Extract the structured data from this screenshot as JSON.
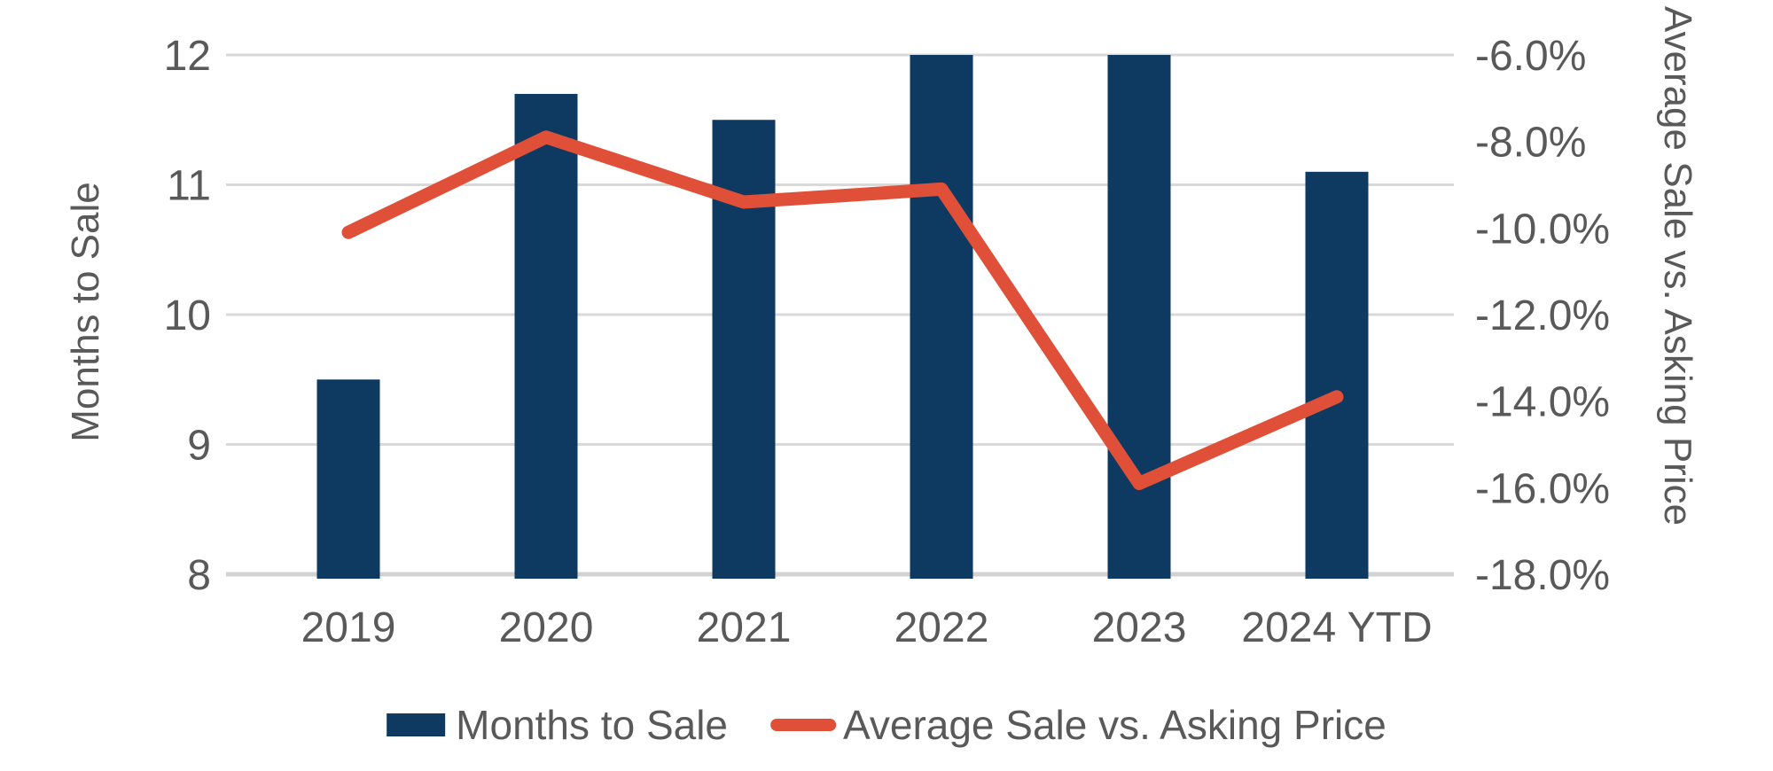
{
  "page": {
    "background": "#ffffff"
  },
  "colors": {
    "bar": "#0e3a62",
    "line": "#e05039",
    "text": "#595959",
    "gridline": "#d9d9d9",
    "axis_line": "#d2d2d2"
  },
  "chart_data": {
    "type": "combo_bar_line",
    "categories": [
      "2019",
      "2020",
      "2021",
      "2022",
      "2023",
      "2024 YTD"
    ],
    "series": [
      {
        "name": "Months to Sale",
        "type": "bar",
        "axis": "left",
        "values": [
          9.5,
          11.7,
          11.5,
          12.0,
          12.0,
          11.1
        ]
      },
      {
        "name": "Average Sale vs. Asking Price",
        "type": "line",
        "axis": "right",
        "values": [
          -10.1,
          -7.9,
          -9.4,
          -9.1,
          -15.9,
          -13.9
        ]
      }
    ],
    "left_axis": {
      "title": "Months to Sale",
      "min": 8,
      "max": 12,
      "tick_step": 1,
      "ticks": [
        12,
        11,
        10,
        9,
        8
      ],
      "tick_labels": [
        "12",
        "11",
        "10",
        "9",
        "8"
      ]
    },
    "right_axis": {
      "title": "Average Sale vs. Asking Price",
      "min": -18,
      "max": -6,
      "tick_step": 2,
      "ticks": [
        -6,
        -8,
        -10,
        -12,
        -14,
        -16,
        -18
      ],
      "tick_labels": [
        "-6.0%",
        "-8.0%",
        "-10.0%",
        "-12.0%",
        "-14.0%",
        "-16.0%",
        "-18.0%"
      ]
    },
    "grid": true,
    "legend_position": "bottom",
    "legend": [
      {
        "label": "Months to Sale",
        "swatch": "bar"
      },
      {
        "label": "Average Sale vs. Asking Price",
        "swatch": "line"
      }
    ]
  }
}
